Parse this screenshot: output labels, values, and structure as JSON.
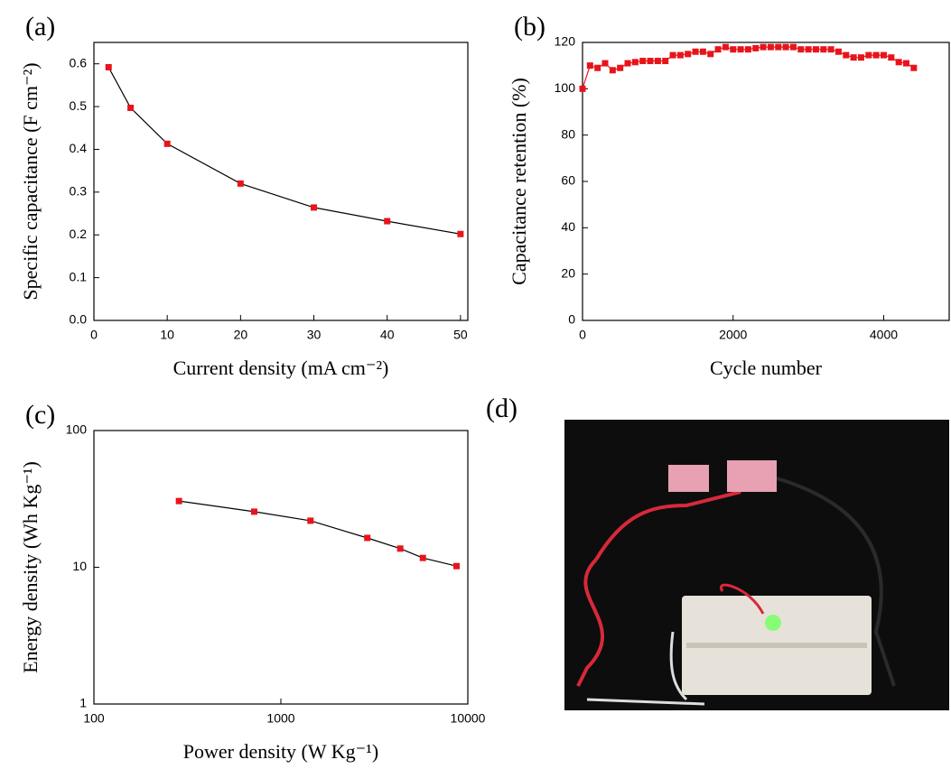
{
  "chart_data": [
    {
      "type": "line",
      "panel_label": "(a)",
      "xlabel": "Current density (mA cm⁻²)",
      "ylabel": "Specific capacitance (F cm⁻²)",
      "x": [
        2,
        5,
        10,
        20,
        30,
        40,
        50
      ],
      "values": [
        0.592,
        0.497,
        0.413,
        0.32,
        0.264,
        0.232,
        0.202
      ],
      "color": "#e8141b",
      "line_color": "#000000",
      "xlim": [
        0,
        51
      ],
      "ylim": [
        0,
        0.65
      ],
      "xticks": [
        0,
        10,
        20,
        30,
        40,
        50
      ],
      "yticks": [
        {
          "value": 0,
          "label": "0.0"
        },
        0.1,
        0.2,
        0.3,
        0.4,
        0.5,
        0.6
      ]
    },
    {
      "type": "line",
      "panel_label": "(b)",
      "xlabel": "Cycle number",
      "ylabel": "Capacitance retention (%)",
      "x": [
        0,
        100,
        200,
        300,
        400,
        500,
        600,
        700,
        800,
        900,
        1000,
        1100,
        1200,
        1300,
        1400,
        1500,
        1600,
        1700,
        1800,
        1900,
        2000,
        2100,
        2200,
        2300,
        2400,
        2500,
        2600,
        2700,
        2800,
        2900,
        3000,
        3100,
        3200,
        3300,
        3400,
        3500,
        3600,
        3700,
        3800,
        3900,
        4000,
        4100,
        4200,
        4300,
        4400
      ],
      "values": [
        100,
        110,
        109,
        111,
        108,
        109,
        111,
        111.5,
        112,
        112,
        112,
        112,
        114.5,
        114.5,
        115,
        116,
        116,
        115,
        117,
        118,
        117,
        117,
        117,
        117.5,
        118,
        118,
        118,
        118,
        118,
        117,
        117,
        117,
        117,
        117,
        116,
        114.5,
        113.5,
        113.5,
        114.5,
        114.5,
        114.5,
        113.5,
        111.5,
        111,
        109
      ],
      "color": "#e8141b",
      "line_color": "#e8141b",
      "xlim": [
        0,
        4870
      ],
      "ylim": [
        0,
        120
      ],
      "xticks": [
        0,
        2000,
        4000
      ],
      "yticks": [
        0,
        20,
        40,
        60,
        80,
        100,
        120
      ]
    },
    {
      "type": "line",
      "panel_label": "(c)",
      "xlabel": "Power density (W Kg⁻¹)",
      "ylabel": "Energy density (Wh Kg⁻¹)",
      "x": [
        285,
        720,
        1440,
        2900,
        4350,
        5750,
        8700
      ],
      "values": [
        30.5,
        25.5,
        21.9,
        16.4,
        13.7,
        11.7,
        10.2
      ],
      "color": "#e8141b",
      "line_color": "#000000",
      "xscale": "log",
      "yscale": "log",
      "xlim": [
        100,
        10000
      ],
      "ylim": [
        1,
        100
      ],
      "xticks": [
        100,
        1000,
        10000
      ],
      "yticks": [
        1,
        10,
        100
      ]
    }
  ],
  "photo": {
    "panel_label": "(d)"
  }
}
